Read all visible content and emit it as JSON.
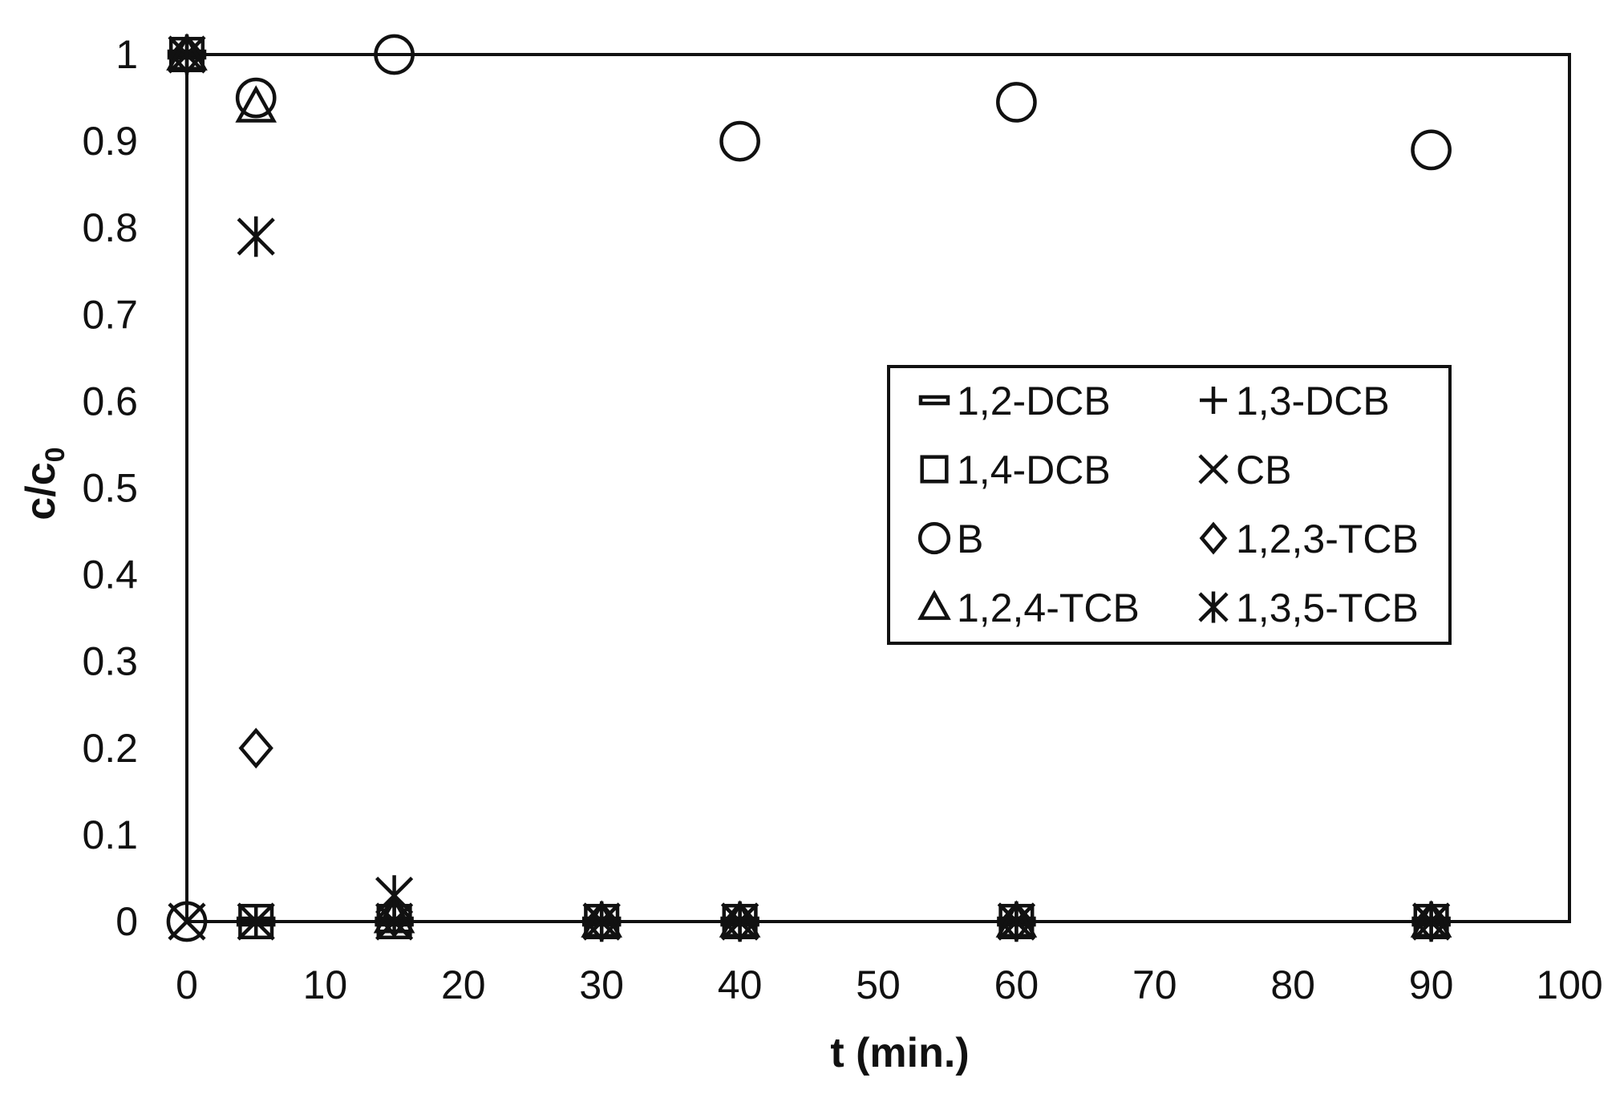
{
  "chart_data": {
    "type": "scatter",
    "title": "",
    "xlabel": "t (min.)",
    "ylabel": "c/c",
    "ylabel_subscript": "0",
    "xlim": [
      0,
      100
    ],
    "ylim": [
      0,
      1
    ],
    "x_ticks": [
      0,
      10,
      20,
      30,
      40,
      50,
      60,
      70,
      80,
      90,
      100
    ],
    "x_tick_labels": [
      "0",
      "10",
      "20",
      "30",
      "40",
      "50",
      "60",
      "70",
      "80",
      "90",
      "100"
    ],
    "y_ticks": [
      0,
      0.1,
      0.2,
      0.3,
      0.4,
      0.5,
      0.6,
      0.7,
      0.8,
      0.9,
      1
    ],
    "y_tick_labels": [
      "0",
      "0.1",
      "0.2",
      "0.3",
      "0.4",
      "0.5",
      "0.6",
      "0.7",
      "0.8",
      "0.9",
      "1"
    ],
    "grid": false,
    "legend_position": "right-middle",
    "series": [
      {
        "name": "1,2-DCB",
        "marker": "dash",
        "x": [
          0,
          5,
          15,
          30,
          40,
          60,
          90
        ],
        "y": [
          1,
          0,
          0,
          0,
          0,
          0,
          0
        ]
      },
      {
        "name": "1,3-DCB",
        "marker": "plus",
        "x": [
          0,
          5,
          15,
          30,
          40,
          60,
          90
        ],
        "y": [
          1,
          0,
          0,
          0,
          0,
          0,
          0
        ]
      },
      {
        "name": "1,4-DCB",
        "marker": "square",
        "x": [
          0,
          5,
          15,
          30,
          40,
          60,
          90
        ],
        "y": [
          1,
          0,
          0,
          0,
          0,
          0,
          0
        ]
      },
      {
        "name": "CB",
        "marker": "x",
        "x": [
          0,
          5,
          15,
          30,
          40,
          60,
          90
        ],
        "y": [
          0,
          0,
          0,
          0,
          0,
          0,
          0
        ]
      },
      {
        "name": "B",
        "marker": "circle",
        "x": [
          0,
          5,
          15,
          40,
          60,
          90
        ],
        "y": [
          0,
          0.95,
          1.0,
          0.9,
          0.945,
          0.89
        ]
      },
      {
        "name": "1,2,3-TCB",
        "marker": "diamond",
        "x": [
          0,
          5,
          15,
          30,
          40,
          60,
          90
        ],
        "y": [
          1,
          0.2,
          0.005,
          0,
          0,
          0,
          0
        ]
      },
      {
        "name": "1,2,4-TCB",
        "marker": "triangle",
        "x": [
          0,
          5,
          15,
          30,
          40,
          60,
          90
        ],
        "y": [
          1,
          0.94,
          0.005,
          0,
          0,
          0,
          0
        ]
      },
      {
        "name": "1,3,5-TCB",
        "marker": "asterisk",
        "x": [
          0,
          5,
          15,
          30,
          40,
          60,
          90
        ],
        "y": [
          1,
          0.79,
          0.03,
          0,
          0,
          0,
          0
        ]
      }
    ]
  }
}
